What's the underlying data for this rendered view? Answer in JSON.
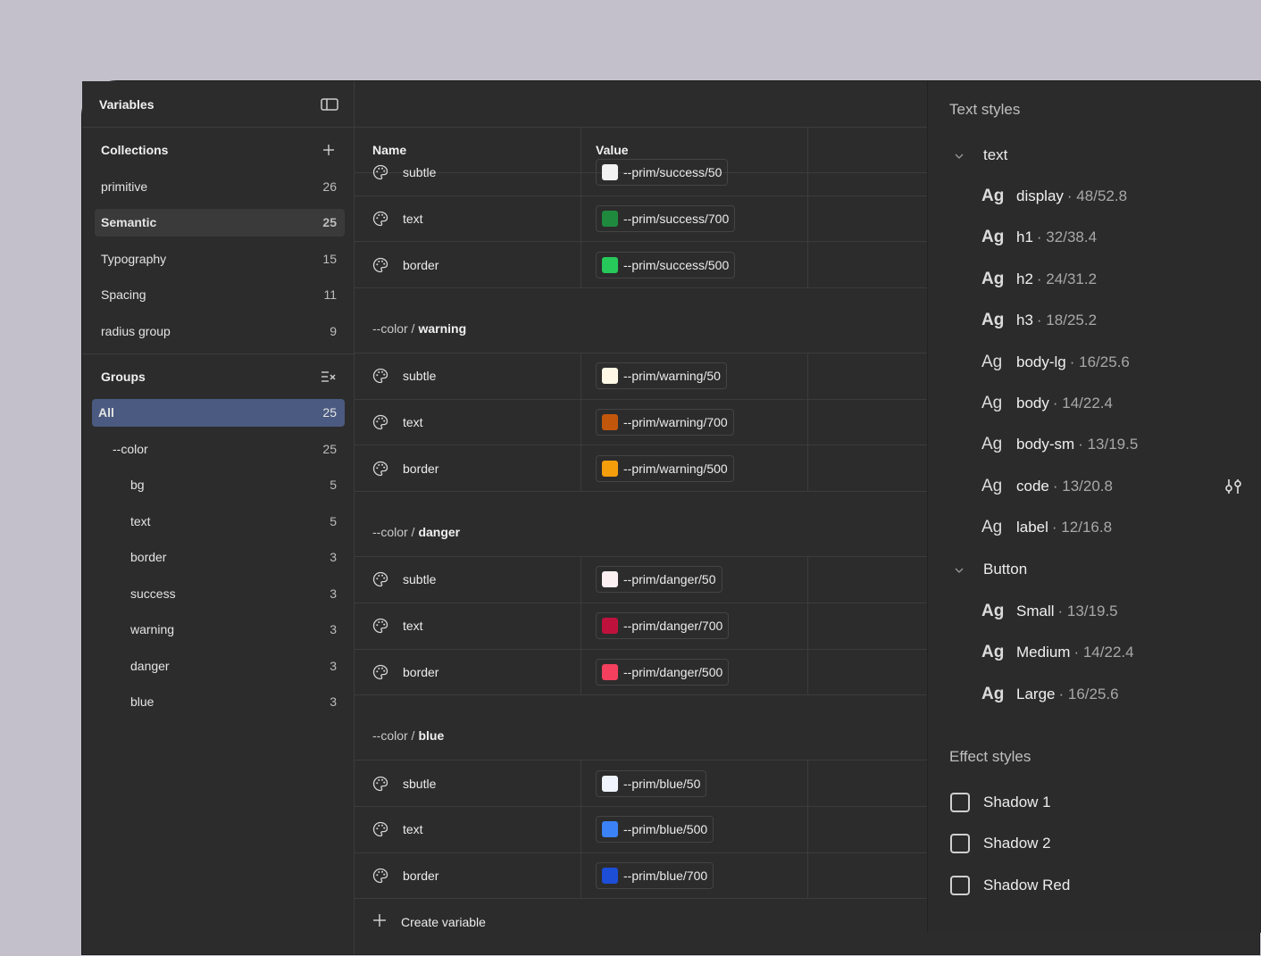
{
  "sidebar": {
    "title": "Variables",
    "collections_label": "Collections",
    "collections": [
      {
        "label": "primitive",
        "count": "26"
      },
      {
        "label": "Semantic",
        "count": "25"
      },
      {
        "label": "Typography",
        "count": "15"
      },
      {
        "label": "Spacing",
        "count": "11"
      },
      {
        "label": "radius group",
        "count": "9"
      }
    ],
    "groups_label": "Groups",
    "groups": [
      {
        "label": "All",
        "count": "25"
      },
      {
        "label": "--color",
        "count": "25"
      },
      {
        "label": "bg",
        "count": "5"
      },
      {
        "label": "text",
        "count": "5"
      },
      {
        "label": "border",
        "count": "3"
      },
      {
        "label": "success",
        "count": "3"
      },
      {
        "label": "warning",
        "count": "3"
      },
      {
        "label": "danger",
        "count": "3"
      },
      {
        "label": "blue",
        "count": "3"
      }
    ]
  },
  "table": {
    "col_name": "Name",
    "col_value": "Value",
    "partial_row": {
      "name": "subtle",
      "value": "--prim/success/50",
      "color": "#f2f2f2"
    },
    "success_rows": [
      {
        "name": "text",
        "value": "--prim/success/700",
        "color": "#1f8a3e"
      },
      {
        "name": "border",
        "value": "--prim/success/500",
        "color": "#26c95a"
      }
    ],
    "groups": [
      {
        "prefix": "--color /",
        "name": "warning",
        "rows": [
          {
            "name": "subtle",
            "value": "--prim/warning/50",
            "color": "#fff8e6"
          },
          {
            "name": "text",
            "value": "--prim/warning/700",
            "color": "#c2570c"
          },
          {
            "name": "border",
            "value": "--prim/warning/500",
            "color": "#f59e0b"
          }
        ]
      },
      {
        "prefix": "--color /",
        "name": "danger",
        "rows": [
          {
            "name": "subtle",
            "value": "--prim/danger/50",
            "color": "#fdf0f3"
          },
          {
            "name": "text",
            "value": "--prim/danger/700",
            "color": "#be123c"
          },
          {
            "name": "border",
            "value": "--prim/danger/500",
            "color": "#f43f5e"
          }
        ]
      },
      {
        "prefix": "--color /",
        "name": "blue",
        "rows": [
          {
            "name": "sbutle",
            "value": "--prim/blue/50",
            "color": "#eff4ff"
          },
          {
            "name": "text",
            "value": "--prim/blue/500",
            "color": "#3b82f6"
          },
          {
            "name": "border",
            "value": "--prim/blue/700",
            "color": "#1d4ed8"
          }
        ]
      }
    ],
    "create_label": "Create variable"
  },
  "styles": {
    "text_title": "Text styles",
    "text_group": "text",
    "text_items": [
      {
        "ag": "Ag",
        "name": "display",
        "meta": "· 48/52.8"
      },
      {
        "ag": "Ag",
        "name": "h1",
        "meta": "· 32/38.4"
      },
      {
        "ag": "Ag",
        "name": "h2",
        "meta": "· 24/31.2"
      },
      {
        "ag": "Ag",
        "name": "h3",
        "meta": "· 18/25.2"
      },
      {
        "ag": "Ag",
        "name": "body-lg",
        "meta": "· 16/25.6"
      },
      {
        "ag": "Ag",
        "name": "body",
        "meta": "· 14/22.4"
      },
      {
        "ag": "Ag",
        "name": "body-sm",
        "meta": "· 13/19.5"
      },
      {
        "ag": "Ag",
        "name": "code",
        "meta": "· 13/20.8"
      },
      {
        "ag": "Ag",
        "name": "label",
        "meta": "· 12/16.8"
      }
    ],
    "button_group": "Button",
    "button_items": [
      {
        "ag": "Ag",
        "name": "Small",
        "meta": "· 13/19.5"
      },
      {
        "ag": "Ag",
        "name": "Medium",
        "meta": "· 14/22.4"
      },
      {
        "ag": "Ag",
        "name": "Large",
        "meta": "· 16/25.6"
      }
    ],
    "effect_title": "Effect styles",
    "effects": [
      {
        "name": "Shadow 1"
      },
      {
        "name": "Shadow 2"
      },
      {
        "name": "Shadow Red"
      }
    ]
  }
}
